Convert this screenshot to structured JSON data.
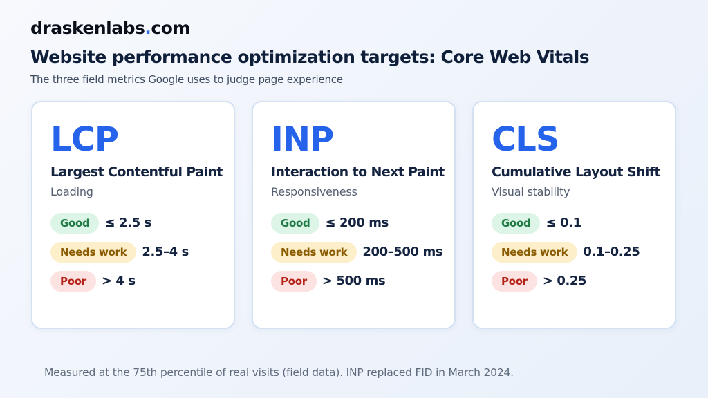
{
  "brand": {
    "name": "draskenlabs",
    "dot": ".",
    "tld": "com"
  },
  "title": "Website performance optimization targets: Core Web Vitals",
  "subtitle": "The three field metrics Google uses to judge page experience",
  "cards": [
    {
      "abbr": "LCP",
      "name": "Largest Contentful Paint",
      "category": "Loading",
      "thresholds": [
        {
          "label": "Good",
          "value": "≤ 2.5 s"
        },
        {
          "label": "Needs work",
          "value": "2.5–4 s"
        },
        {
          "label": "Poor",
          "value": "> 4 s"
        }
      ]
    },
    {
      "abbr": "INP",
      "name": "Interaction to Next Paint",
      "category": "Responsiveness",
      "thresholds": [
        {
          "label": "Good",
          "value": "≤ 200 ms"
        },
        {
          "label": "Needs work",
          "value": "200–500 ms"
        },
        {
          "label": "Poor",
          "value": "> 500 ms"
        }
      ]
    },
    {
      "abbr": "CLS",
      "name": "Cumulative Layout Shift",
      "category": "Visual stability",
      "thresholds": [
        {
          "label": "Good",
          "value": "≤ 0.1"
        },
        {
          "label": "Needs work",
          "value": "0.1–0.25"
        },
        {
          "label": "Poor",
          "value": "> 0.25"
        }
      ]
    }
  ],
  "colors": {
    "accent": "#2563eb",
    "good_bg": "#dcf5e6",
    "good_text": "#1f7a46",
    "needs_bg": "#fdefc9",
    "needs_text": "#8a5a00",
    "poor_bg": "#fde2e2",
    "poor_text": "#b42318"
  },
  "footnote": "Measured at the 75th percentile of real visits (field data). INP replaced FID in March 2024."
}
